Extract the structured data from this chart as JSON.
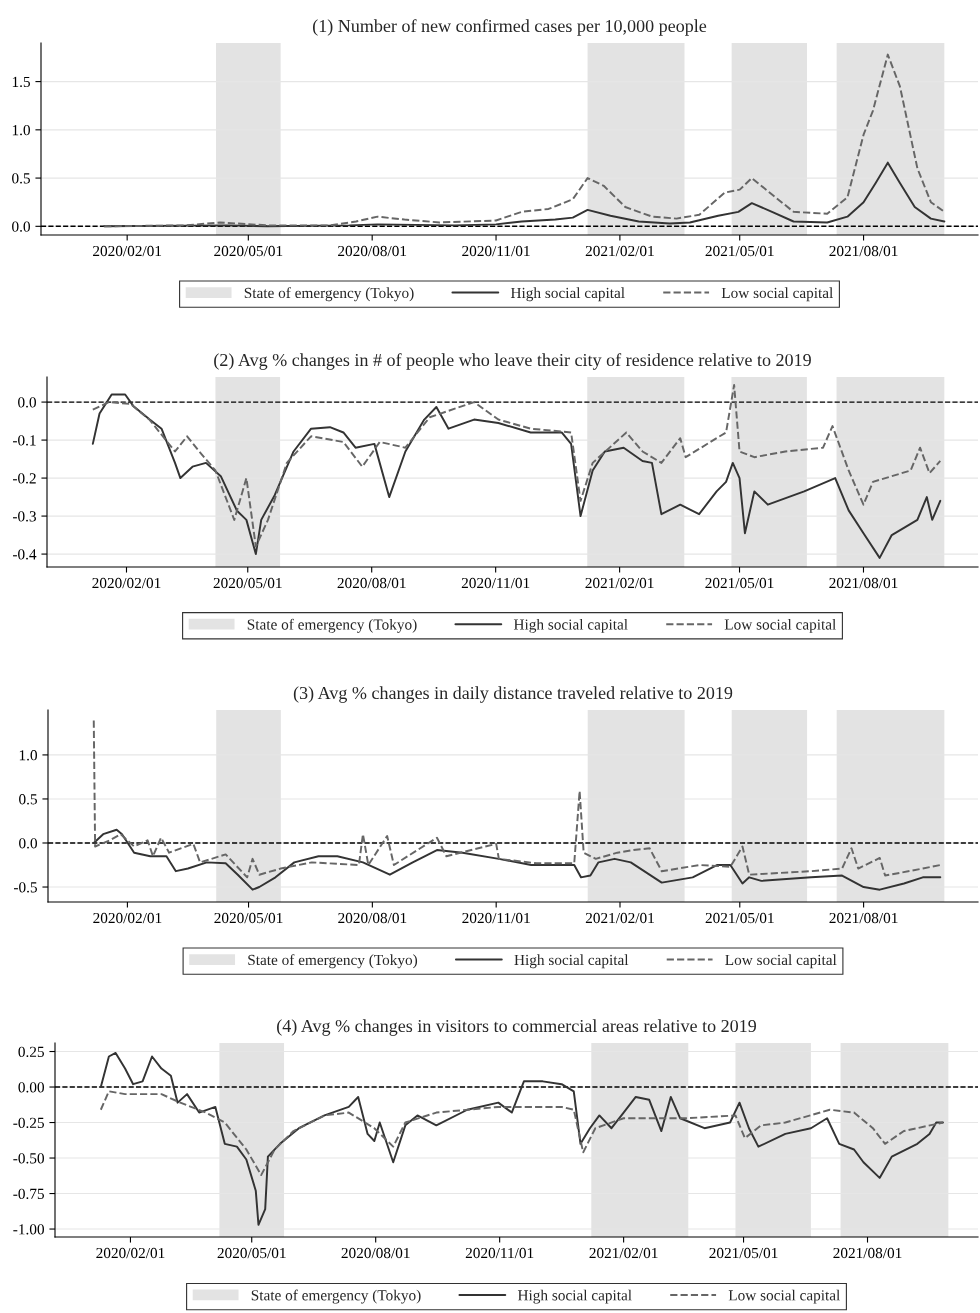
{
  "chart_data": [
    {
      "type": "line",
      "title": "(1) Number of new confirmed cases per 10,000 people",
      "xlim": [
        "2019-11-29",
        "2021-10-25"
      ],
      "ylim": [
        -0.09,
        1.9
      ],
      "xticks": [
        {
          "value": "2020-02-01",
          "label": "2020/02/01"
        },
        {
          "value": "2020-05-01",
          "label": "2020/05/01"
        },
        {
          "value": "2020-08-01",
          "label": "2020/08/01"
        },
        {
          "value": "2020-11-01",
          "label": "2020/11/01"
        },
        {
          "value": "2021-02-01",
          "label": "2021/02/01"
        },
        {
          "value": "2021-05-01",
          "label": "2021/05/01"
        },
        {
          "value": "2021-08-01",
          "label": "2021/08/01"
        }
      ],
      "yticks": [
        {
          "value": 0,
          "label": "0.0"
        },
        {
          "value": 0.5,
          "label": "0.5"
        },
        {
          "value": 1,
          "label": "1.0"
        },
        {
          "value": 1.5,
          "label": "1.5"
        }
      ],
      "grid": "y",
      "legend": "bottom",
      "bands": [
        {
          "axis": "x",
          "from": "2020-04-07",
          "to": "2020-05-25",
          "label": "State of emergency (Tokyo)",
          "color": "#e3e3e3"
        },
        {
          "axis": "x",
          "from": "2021-01-08",
          "to": "2021-03-21",
          "color": "#e3e3e3"
        },
        {
          "axis": "x",
          "from": "2021-04-25",
          "to": "2021-06-20",
          "color": "#e3e3e3"
        },
        {
          "axis": "x",
          "from": "2021-07-12",
          "to": "2021-09-30",
          "color": "#e3e3e3"
        }
      ],
      "ref_lines": [
        {
          "axis": "y",
          "value": 0,
          "color": "#000000",
          "line_style": "dashed"
        }
      ],
      "series": [
        {
          "name": "High social capital",
          "color": "#333333",
          "line_style": "solid",
          "x": [
            "2020-01-15",
            "2020-04-15",
            "2020-05-15",
            "2020-07-15",
            "2020-08-05",
            "2020-10-01",
            "2020-11-01",
            "2020-11-20",
            "2020-12-15",
            "2020-12-28",
            "2021-01-08",
            "2021-01-25",
            "2021-02-15",
            "2021-03-10",
            "2021-03-25",
            "2021-04-15",
            "2021-04-30",
            "2021-05-10",
            "2021-05-25",
            "2021-06-10",
            "2021-07-05",
            "2021-07-20",
            "2021-08-01",
            "2021-08-10",
            "2021-08-19",
            "2021-08-28",
            "2021-09-08",
            "2021-09-20",
            "2021-09-30"
          ],
          "values": [
            0.0,
            0.01,
            0.0,
            0.01,
            0.02,
            0.01,
            0.02,
            0.05,
            0.07,
            0.09,
            0.17,
            0.11,
            0.05,
            0.03,
            0.04,
            0.11,
            0.15,
            0.24,
            0.15,
            0.05,
            0.04,
            0.1,
            0.25,
            0.45,
            0.66,
            0.45,
            0.2,
            0.08,
            0.05
          ]
        },
        {
          "name": "Low social capital",
          "color": "#666666",
          "line_style": "dashed",
          "x": [
            "2020-01-15",
            "2020-03-15",
            "2020-04-10",
            "2020-05-15",
            "2020-07-01",
            "2020-07-20",
            "2020-08-05",
            "2020-08-25",
            "2020-09-20",
            "2020-11-01",
            "2020-11-20",
            "2020-12-10",
            "2020-12-28",
            "2021-01-08",
            "2021-01-20",
            "2021-02-05",
            "2021-02-25",
            "2021-03-15",
            "2021-04-01",
            "2021-04-20",
            "2021-05-01",
            "2021-05-10",
            "2021-05-25",
            "2021-06-10",
            "2021-07-05",
            "2021-07-20",
            "2021-08-01",
            "2021-08-08",
            "2021-08-19",
            "2021-08-28",
            "2021-09-10",
            "2021-09-20",
            "2021-09-30"
          ],
          "values": [
            0.0,
            0.01,
            0.04,
            0.01,
            0.01,
            0.05,
            0.1,
            0.07,
            0.04,
            0.06,
            0.15,
            0.18,
            0.28,
            0.5,
            0.42,
            0.2,
            0.1,
            0.08,
            0.12,
            0.35,
            0.38,
            0.5,
            0.33,
            0.15,
            0.13,
            0.3,
            0.95,
            1.2,
            1.78,
            1.45,
            0.6,
            0.25,
            0.15
          ]
        }
      ]
    },
    {
      "type": "line",
      "title": "(2) Avg % changes in # of people who leave their city of residence relative to 2019",
      "xlim": [
        "2019-12-04",
        "2021-10-25"
      ],
      "ylim": [
        -0.434,
        0.066
      ],
      "xticks": [
        {
          "value": "2020-02-01",
          "label": "2020/02/01"
        },
        {
          "value": "2020-05-01",
          "label": "2020/05/01"
        },
        {
          "value": "2020-08-01",
          "label": "2020/08/01"
        },
        {
          "value": "2020-11-01",
          "label": "2020/11/01"
        },
        {
          "value": "2021-02-01",
          "label": "2021/02/01"
        },
        {
          "value": "2021-05-01",
          "label": "2021/05/01"
        },
        {
          "value": "2021-08-01",
          "label": "2021/08/01"
        }
      ],
      "yticks": [
        {
          "value": -0.4,
          "label": "-0.4"
        },
        {
          "value": -0.3,
          "label": "-0.3"
        },
        {
          "value": -0.2,
          "label": "-0.2"
        },
        {
          "value": -0.1,
          "label": "-0.1"
        },
        {
          "value": 0,
          "label": "0.0"
        }
      ],
      "grid": "y",
      "legend": "bottom",
      "bands": [
        {
          "axis": "x",
          "from": "2020-04-07",
          "to": "2020-05-25",
          "label": "State of emergency (Tokyo)",
          "color": "#e3e3e3"
        },
        {
          "axis": "x",
          "from": "2021-01-08",
          "to": "2021-03-21",
          "color": "#e3e3e3"
        },
        {
          "axis": "x",
          "from": "2021-04-25",
          "to": "2021-06-20",
          "color": "#e3e3e3"
        },
        {
          "axis": "x",
          "from": "2021-07-12",
          "to": "2021-09-30",
          "color": "#e3e3e3"
        }
      ],
      "ref_lines": [
        {
          "axis": "y",
          "value": 0,
          "color": "#000000",
          "line_style": "dashed"
        }
      ],
      "series": [
        {
          "name": "High social capital",
          "color": "#333333",
          "line_style": "solid",
          "x": [
            "2020-01-07",
            "2020-01-12",
            "2020-01-21",
            "2020-01-31",
            "2020-02-06",
            "2020-02-18",
            "2020-02-27",
            "2020-03-08",
            "2020-03-12",
            "2020-03-21",
            "2020-03-31",
            "2020-04-11",
            "2020-04-23",
            "2020-04-30",
            "2020-05-07",
            "2020-05-11",
            "2020-05-21",
            "2020-06-04",
            "2020-06-17",
            "2020-07-01",
            "2020-07-11",
            "2020-07-20",
            "2020-08-03",
            "2020-08-14",
            "2020-08-26",
            "2020-09-09",
            "2020-09-18",
            "2020-09-27",
            "2020-10-16",
            "2020-11-03",
            "2020-11-27",
            "2020-12-20",
            "2020-12-27",
            "2021-01-03",
            "2021-01-12",
            "2021-01-21",
            "2021-02-04",
            "2021-02-18",
            "2021-02-25",
            "2021-03-04",
            "2021-03-18",
            "2021-04-01",
            "2021-04-14",
            "2021-04-21",
            "2021-04-26",
            "2021-05-01",
            "2021-05-05",
            "2021-05-12",
            "2021-05-22",
            "2021-06-18",
            "2021-07-11",
            "2021-07-21",
            "2021-08-01",
            "2021-08-13",
            "2021-08-22",
            "2021-09-10",
            "2021-09-17",
            "2021-09-21",
            "2021-09-27"
          ],
          "values": [
            -0.11,
            -0.03,
            0.02,
            0.02,
            -0.01,
            -0.045,
            -0.07,
            -0.16,
            -0.2,
            -0.17,
            -0.16,
            -0.195,
            -0.286,
            -0.31,
            -0.4,
            -0.31,
            -0.245,
            -0.13,
            -0.07,
            -0.066,
            -0.08,
            -0.12,
            -0.11,
            -0.25,
            -0.13,
            -0.046,
            -0.013,
            -0.07,
            -0.046,
            -0.055,
            -0.08,
            -0.08,
            -0.11,
            -0.3,
            -0.18,
            -0.13,
            -0.12,
            -0.155,
            -0.16,
            -0.295,
            -0.27,
            -0.295,
            -0.235,
            -0.21,
            -0.16,
            -0.2,
            -0.345,
            -0.235,
            -0.27,
            -0.235,
            -0.2,
            -0.285,
            -0.345,
            -0.41,
            -0.35,
            -0.31,
            -0.25,
            -0.31,
            -0.26
          ]
        },
        {
          "name": "Low social capital",
          "color": "#666666",
          "line_style": "dashed",
          "x": [
            "2020-01-07",
            "2020-01-19",
            "2020-02-04",
            "2020-02-18",
            "2020-03-08",
            "2020-03-17",
            "2020-03-26",
            "2020-04-07",
            "2020-04-21",
            "2020-04-30",
            "2020-05-07",
            "2020-05-16",
            "2020-05-30",
            "2020-06-17",
            "2020-07-11",
            "2020-07-25",
            "2020-08-07",
            "2020-08-26",
            "2020-09-13",
            "2020-10-16",
            "2020-11-03",
            "2020-11-27",
            "2020-12-27",
            "2021-01-03",
            "2021-01-12",
            "2021-02-06",
            "2021-02-18",
            "2021-03-04",
            "2021-03-18",
            "2021-03-22",
            "2021-04-14",
            "2021-04-21",
            "2021-04-27",
            "2021-05-01",
            "2021-05-12",
            "2021-06-04",
            "2021-07-02",
            "2021-07-09",
            "2021-07-21",
            "2021-08-01",
            "2021-08-08",
            "2021-09-05",
            "2021-09-12",
            "2021-09-19",
            "2021-09-27"
          ],
          "values": [
            -0.02,
            0.0,
            -0.005,
            -0.046,
            -0.13,
            -0.09,
            -0.13,
            -0.18,
            -0.31,
            -0.2,
            -0.38,
            -0.31,
            -0.16,
            -0.09,
            -0.105,
            -0.17,
            -0.105,
            -0.12,
            -0.04,
            0.0,
            -0.046,
            -0.07,
            -0.08,
            -0.26,
            -0.16,
            -0.08,
            -0.13,
            -0.16,
            -0.095,
            -0.145,
            -0.095,
            -0.08,
            0.045,
            -0.13,
            -0.145,
            -0.13,
            -0.12,
            -0.063,
            -0.18,
            -0.27,
            -0.21,
            -0.18,
            -0.12,
            -0.187,
            -0.155
          ]
        }
      ]
    },
    {
      "type": "line",
      "title": "(3) Avg % changes in daily distance traveled relative to 2019",
      "xlim": [
        "2019-12-04",
        "2021-10-25"
      ],
      "ylim": [
        -0.67,
        1.51
      ],
      "xticks": [
        {
          "value": "2020-02-01",
          "label": "2020/02/01"
        },
        {
          "value": "2020-05-01",
          "label": "2020/05/01"
        },
        {
          "value": "2020-08-01",
          "label": "2020/08/01"
        },
        {
          "value": "2020-11-01",
          "label": "2020/11/01"
        },
        {
          "value": "2021-02-01",
          "label": "2021/02/01"
        },
        {
          "value": "2021-05-01",
          "label": "2021/05/01"
        },
        {
          "value": "2021-08-01",
          "label": "2021/08/01"
        }
      ],
      "yticks": [
        {
          "value": -0.5,
          "label": "-0.5"
        },
        {
          "value": 0,
          "label": "0.0"
        },
        {
          "value": 0.5,
          "label": "0.5"
        },
        {
          "value": 1,
          "label": "1.0"
        }
      ],
      "grid": "y",
      "legend": "bottom",
      "bands": [
        {
          "axis": "x",
          "from": "2020-04-07",
          "to": "2020-05-25",
          "label": "State of emergency (Tokyo)",
          "color": "#e3e3e3"
        },
        {
          "axis": "x",
          "from": "2021-01-08",
          "to": "2021-03-21",
          "color": "#e3e3e3"
        },
        {
          "axis": "x",
          "from": "2021-04-25",
          "to": "2021-06-20",
          "color": "#e3e3e3"
        },
        {
          "axis": "x",
          "from": "2021-07-12",
          "to": "2021-09-30",
          "color": "#e3e3e3"
        }
      ],
      "ref_lines": [
        {
          "axis": "y",
          "value": 0,
          "color": "#000000",
          "line_style": "dashed"
        }
      ],
      "series": [
        {
          "name": "High social capital",
          "color": "#333333",
          "line_style": "solid",
          "x": [
            "2020-01-07",
            "2020-01-14",
            "2020-01-24",
            "2020-01-28",
            "2020-02-06",
            "2020-02-18",
            "2020-03-01",
            "2020-03-08",
            "2020-03-17",
            "2020-03-31",
            "2020-04-14",
            "2020-04-23",
            "2020-05-04",
            "2020-05-09",
            "2020-05-21",
            "2020-06-04",
            "2020-06-22",
            "2020-07-06",
            "2020-07-25",
            "2020-08-14",
            "2020-08-31",
            "2020-09-18",
            "2020-10-07",
            "2020-11-03",
            "2020-11-27",
            "2020-12-29",
            "2021-01-03",
            "2021-01-10",
            "2021-01-16",
            "2021-01-28",
            "2021-02-09",
            "2021-03-04",
            "2021-03-27",
            "2021-04-14",
            "2021-04-24",
            "2021-05-03",
            "2021-05-08",
            "2021-05-17",
            "2021-06-23",
            "2021-07-16",
            "2021-08-01",
            "2021-08-13",
            "2021-08-31",
            "2021-09-14",
            "2021-09-27"
          ],
          "values": [
            0.0,
            0.1,
            0.15,
            0.1,
            -0.11,
            -0.15,
            -0.15,
            -0.32,
            -0.29,
            -0.22,
            -0.23,
            -0.36,
            -0.53,
            -0.5,
            -0.39,
            -0.22,
            -0.15,
            -0.15,
            -0.22,
            -0.36,
            -0.22,
            -0.08,
            -0.11,
            -0.18,
            -0.25,
            -0.25,
            -0.39,
            -0.37,
            -0.22,
            -0.18,
            -0.22,
            -0.45,
            -0.39,
            -0.25,
            -0.25,
            -0.46,
            -0.39,
            -0.43,
            -0.39,
            -0.37,
            -0.5,
            -0.53,
            -0.46,
            -0.39,
            -0.39
          ]
        },
        {
          "name": "Low social capital",
          "color": "#666666",
          "line_style": "dashed",
          "x": [
            "2020-01-07",
            "2020-01-08",
            "2020-01-19",
            "2020-01-27",
            "2020-02-06",
            "2020-02-16",
            "2020-02-20",
            "2020-02-26",
            "2020-03-03",
            "2020-03-21",
            "2020-03-26",
            "2020-04-14",
            "2020-04-30",
            "2020-05-04",
            "2020-05-09",
            "2020-05-25",
            "2020-06-17",
            "2020-07-22",
            "2020-07-25",
            "2020-07-29",
            "2020-08-12",
            "2020-08-17",
            "2020-09-18",
            "2020-09-25",
            "2020-11-01",
            "2020-11-03",
            "2020-12-01",
            "2020-12-29",
            "2021-01-02",
            "2021-01-05",
            "2021-01-14",
            "2021-01-30",
            "2021-02-11",
            "2021-02-23",
            "2021-03-04",
            "2021-04-01",
            "2021-04-24",
            "2021-05-03",
            "2021-05-08",
            "2021-06-23",
            "2021-07-16",
            "2021-07-23",
            "2021-07-28",
            "2021-08-13",
            "2021-08-17",
            "2021-09-14",
            "2021-09-27"
          ],
          "values": [
            1.39,
            -0.04,
            0.03,
            0.1,
            -0.04,
            0.03,
            -0.15,
            0.06,
            -0.11,
            -0.01,
            -0.22,
            -0.13,
            -0.39,
            -0.18,
            -0.36,
            -0.29,
            -0.22,
            -0.25,
            0.1,
            -0.25,
            0.08,
            -0.25,
            0.06,
            -0.15,
            -0.01,
            -0.18,
            -0.23,
            -0.23,
            0.59,
            -0.11,
            -0.18,
            -0.11,
            -0.08,
            -0.06,
            -0.32,
            -0.25,
            -0.27,
            -0.04,
            -0.36,
            -0.32,
            -0.29,
            -0.06,
            -0.29,
            -0.17,
            -0.37,
            -0.29,
            -0.25
          ]
        }
      ]
    },
    {
      "type": "line",
      "title": "(4) Avg % changes in visitors to commercial areas relative to 2019",
      "xlim": [
        "2019-12-07",
        "2021-10-22"
      ],
      "ylim": [
        -1.056,
        0.31
      ],
      "xticks": [
        {
          "value": "2020-02-01",
          "label": "2020/02/01"
        },
        {
          "value": "2020-05-01",
          "label": "2020/05/01"
        },
        {
          "value": "2020-08-01",
          "label": "2020/08/01"
        },
        {
          "value": "2020-11-01",
          "label": "2020/11/01"
        },
        {
          "value": "2021-02-01",
          "label": "2021/02/01"
        },
        {
          "value": "2021-05-01",
          "label": "2021/05/01"
        },
        {
          "value": "2021-08-01",
          "label": "2021/08/01"
        }
      ],
      "yticks": [
        {
          "value": -1,
          "label": "-1.00"
        },
        {
          "value": -0.75,
          "label": "-0.75"
        },
        {
          "value": -0.5,
          "label": "-0.50"
        },
        {
          "value": -0.25,
          "label": "-0.25"
        },
        {
          "value": 0,
          "label": "0.00"
        },
        {
          "value": 0.25,
          "label": "0.25"
        }
      ],
      "grid": "y",
      "legend": "bottom",
      "bands": [
        {
          "axis": "x",
          "from": "2020-04-07",
          "to": "2020-05-25",
          "label": "State of emergency (Tokyo)",
          "color": "#e3e3e3"
        },
        {
          "axis": "x",
          "from": "2021-01-08",
          "to": "2021-03-21",
          "color": "#e3e3e3"
        },
        {
          "axis": "x",
          "from": "2021-04-25",
          "to": "2021-06-20",
          "color": "#e3e3e3"
        },
        {
          "axis": "x",
          "from": "2021-07-12",
          "to": "2021-09-30",
          "color": "#e3e3e3"
        }
      ],
      "ref_lines": [
        {
          "axis": "y",
          "value": 0,
          "color": "#000000",
          "line_style": "dashed"
        }
      ],
      "series": [
        {
          "name": "High social capital",
          "color": "#333333",
          "line_style": "solid",
          "x": [
            "2020-01-10",
            "2020-01-16",
            "2020-01-21",
            "2020-01-28",
            "2020-02-03",
            "2020-02-10",
            "2020-02-17",
            "2020-02-24",
            "2020-03-02",
            "2020-03-07",
            "2020-03-14",
            "2020-03-23",
            "2020-04-04",
            "2020-04-11",
            "2020-04-20",
            "2020-04-27",
            "2020-05-04",
            "2020-05-06",
            "2020-05-11",
            "2020-05-13",
            "2020-05-22",
            "2020-06-05",
            "2020-06-24",
            "2020-07-12",
            "2020-07-19",
            "2020-07-26",
            "2020-07-31",
            "2020-08-04",
            "2020-08-14",
            "2020-08-23",
            "2020-09-01",
            "2020-09-15",
            "2020-10-08",
            "2020-10-31",
            "2020-11-10",
            "2020-11-19",
            "2020-12-03",
            "2020-12-17",
            "2020-12-26",
            "2020-12-31",
            "2021-01-07",
            "2021-01-14",
            "2021-01-23",
            "2021-02-01",
            "2021-02-10",
            "2021-02-20",
            "2021-03-01",
            "2021-03-08",
            "2021-03-15",
            "2021-04-02",
            "2021-04-21",
            "2021-04-28",
            "2021-05-05",
            "2021-05-12",
            "2021-06-01",
            "2021-06-20",
            "2021-07-02",
            "2021-07-11",
            "2021-07-22",
            "2021-07-29",
            "2021-08-10",
            "2021-08-19",
            "2021-09-07",
            "2021-09-16",
            "2021-09-21",
            "2021-09-26"
          ],
          "values": [
            0.0,
            0.215,
            0.24,
            0.13,
            0.02,
            0.04,
            0.215,
            0.13,
            0.08,
            -0.11,
            -0.05,
            -0.18,
            -0.14,
            -0.4,
            -0.42,
            -0.51,
            -0.73,
            -0.97,
            -0.86,
            -0.49,
            -0.4,
            -0.29,
            -0.2,
            -0.14,
            -0.07,
            -0.33,
            -0.38,
            -0.25,
            -0.53,
            -0.27,
            -0.2,
            -0.27,
            -0.16,
            -0.11,
            -0.18,
            0.04,
            0.04,
            0.02,
            -0.03,
            -0.4,
            -0.29,
            -0.2,
            -0.29,
            -0.18,
            -0.07,
            -0.09,
            -0.31,
            -0.07,
            -0.22,
            -0.29,
            -0.25,
            -0.11,
            -0.29,
            -0.42,
            -0.33,
            -0.29,
            -0.22,
            -0.4,
            -0.44,
            -0.53,
            -0.64,
            -0.49,
            -0.4,
            -0.33,
            -0.25,
            -0.25
          ]
        },
        {
          "name": "Low social capital",
          "color": "#666666",
          "line_style": "dashed",
          "x": [
            "2020-01-10",
            "2020-01-16",
            "2020-01-28",
            "2020-02-24",
            "2020-03-09",
            "2020-03-28",
            "2020-04-11",
            "2020-04-27",
            "2020-05-08",
            "2020-05-18",
            "2020-06-01",
            "2020-06-24",
            "2020-07-12",
            "2020-07-31",
            "2020-08-14",
            "2020-08-23",
            "2020-09-15",
            "2020-10-31",
            "2020-12-17",
            "2020-12-26",
            "2021-01-02",
            "2021-01-11",
            "2021-02-01",
            "2021-03-19",
            "2021-04-25",
            "2021-05-02",
            "2021-05-14",
            "2021-06-01",
            "2021-07-04",
            "2021-07-22",
            "2021-08-05",
            "2021-08-14",
            "2021-08-28",
            "2021-09-26"
          ],
          "values": [
            -0.16,
            -0.03,
            -0.05,
            -0.05,
            -0.11,
            -0.18,
            -0.25,
            -0.44,
            -0.62,
            -0.44,
            -0.31,
            -0.2,
            -0.18,
            -0.29,
            -0.42,
            -0.25,
            -0.18,
            -0.14,
            -0.14,
            -0.16,
            -0.46,
            -0.29,
            -0.22,
            -0.22,
            -0.2,
            -0.36,
            -0.27,
            -0.25,
            -0.16,
            -0.18,
            -0.29,
            -0.4,
            -0.31,
            -0.25
          ]
        }
      ]
    }
  ]
}
